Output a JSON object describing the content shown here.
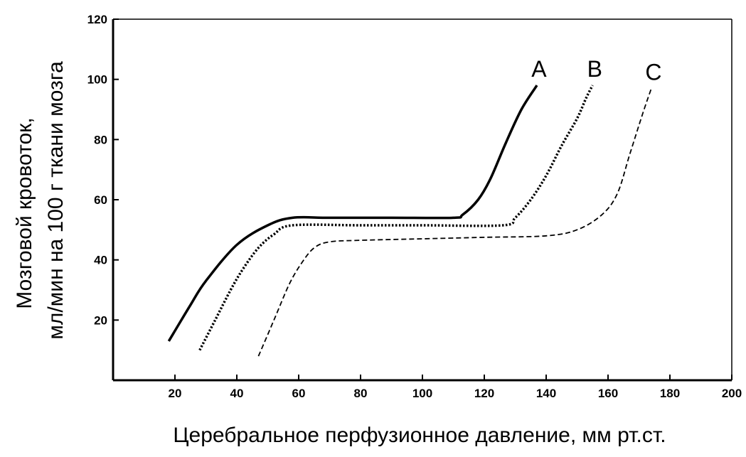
{
  "chart_data": {
    "type": "line",
    "title": "",
    "xlabel": "Церебральное перфузионное давление, мм рт.ст.",
    "ylabel": [
      "Мозговой кровоток,",
      "мл/мин на 100 г ткани мозга"
    ],
    "xlim": [
      0,
      200
    ],
    "ylim": [
      0,
      120
    ],
    "xticks": [
      20,
      40,
      60,
      80,
      100,
      120,
      140,
      160,
      180,
      200
    ],
    "yticks": [
      20,
      40,
      60,
      80,
      100,
      120
    ],
    "grid": false,
    "series": [
      {
        "name": "A",
        "style": "solid",
        "points": [
          [
            18,
            13
          ],
          [
            25,
            25
          ],
          [
            30,
            33
          ],
          [
            40,
            45
          ],
          [
            50,
            51.5
          ],
          [
            58,
            54
          ],
          [
            70,
            54
          ],
          [
            90,
            54
          ],
          [
            110,
            54
          ],
          [
            113,
            55
          ],
          [
            118,
            60
          ],
          [
            122,
            67
          ],
          [
            127,
            79
          ],
          [
            132,
            90
          ],
          [
            137,
            98
          ]
        ]
      },
      {
        "name": "B",
        "style": "dotted",
        "points": [
          [
            28,
            10
          ],
          [
            33,
            20
          ],
          [
            38,
            30
          ],
          [
            42,
            37
          ],
          [
            47,
            44
          ],
          [
            52,
            48.5
          ],
          [
            58,
            51.5
          ],
          [
            80,
            51.5
          ],
          [
            100,
            51.5
          ],
          [
            126,
            51.5
          ],
          [
            130,
            54
          ],
          [
            135,
            60
          ],
          [
            140,
            68
          ],
          [
            145,
            78
          ],
          [
            150,
            87
          ],
          [
            153,
            94
          ],
          [
            155,
            98
          ]
        ]
      },
      {
        "name": "C",
        "style": "dashed",
        "points": [
          [
            47,
            8
          ],
          [
            52,
            20
          ],
          [
            57,
            32
          ],
          [
            61,
            39
          ],
          [
            65,
            44
          ],
          [
            70,
            46
          ],
          [
            80,
            46.5
          ],
          [
            100,
            47
          ],
          [
            120,
            47.5
          ],
          [
            140,
            48
          ],
          [
            150,
            50
          ],
          [
            158,
            55
          ],
          [
            163,
            62
          ],
          [
            167,
            75
          ],
          [
            171,
            88
          ],
          [
            174,
            97
          ]
        ]
      }
    ]
  }
}
